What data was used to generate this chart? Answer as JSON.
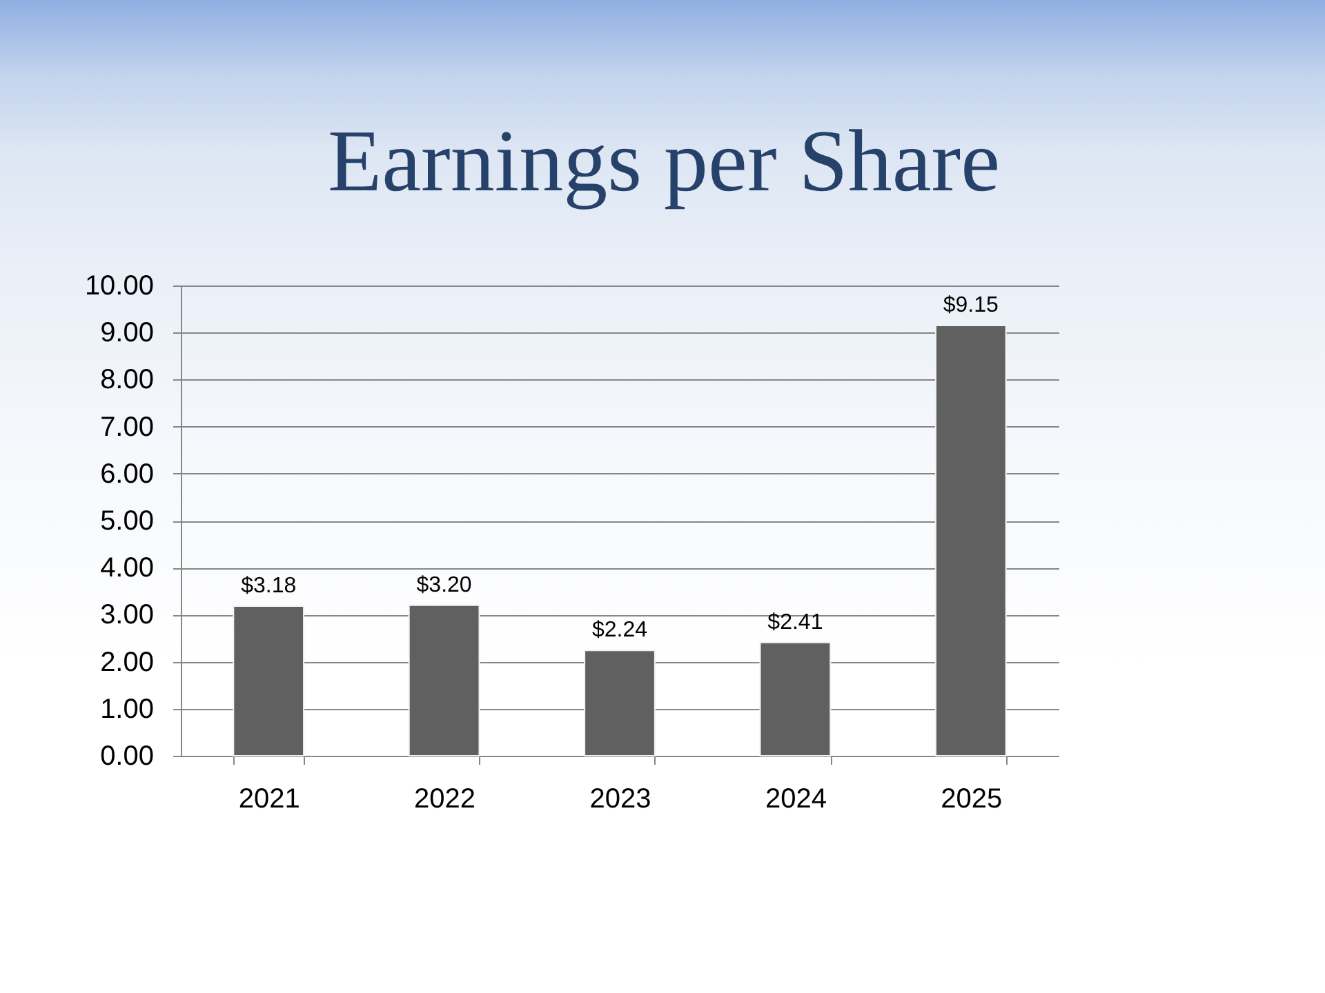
{
  "chart_data": {
    "type": "bar",
    "title": "Earnings per Share",
    "categories": [
      "2021",
      "2022",
      "2023",
      "2024",
      "2025"
    ],
    "values": [
      3.18,
      3.2,
      2.24,
      2.41,
      9.15
    ],
    "value_labels": [
      "$3.18",
      "$3.20",
      "$2.24",
      "$2.41",
      "$9.15"
    ],
    "color": "#606060",
    "ylim": [
      0,
      10
    ],
    "yticks": [
      {
        "value": 0,
        "label": "0.00"
      },
      {
        "value": 1,
        "label": "1.00"
      },
      {
        "value": 2,
        "label": "2.00"
      },
      {
        "value": 3,
        "label": "3.00"
      },
      {
        "value": 4,
        "label": "4.00"
      },
      {
        "value": 5,
        "label": "5.00"
      },
      {
        "value": 6,
        "label": "6.00"
      },
      {
        "value": 7,
        "label": "7.00"
      },
      {
        "value": 8,
        "label": "8.00"
      },
      {
        "value": 9,
        "label": "9.00"
      },
      {
        "value": 10,
        "label": "10.00"
      }
    ],
    "grid": "y"
  }
}
